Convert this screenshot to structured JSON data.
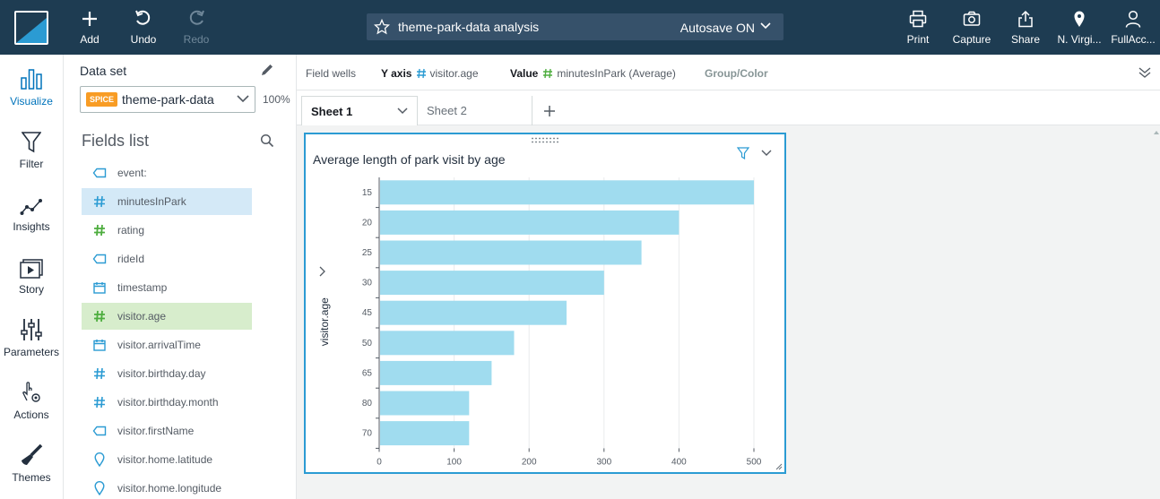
{
  "toolbar": {
    "add_label": "Add",
    "undo_label": "Undo",
    "redo_label": "Redo",
    "analysis_title": "theme-park-data analysis",
    "autosave_label": "Autosave ON",
    "print_label": "Print",
    "capture_label": "Capture",
    "share_label": "Share",
    "region_label": "N. Virgi...",
    "account_label": "FullAcc..."
  },
  "rail": {
    "visualize": "Visualize",
    "filter": "Filter",
    "insights": "Insights",
    "story": "Story",
    "parameters": "Parameters",
    "actions": "Actions",
    "themes": "Themes"
  },
  "dataset": {
    "label": "Data set",
    "badge": "SPICE",
    "name": "theme-park-data",
    "percent": "100%"
  },
  "fields_list": {
    "title": "Fields list",
    "items": [
      {
        "name": "event:",
        "type": "dimension"
      },
      {
        "name": "minutesInPark",
        "type": "measure",
        "state": "selected-blue"
      },
      {
        "name": "rating",
        "type": "measure-green"
      },
      {
        "name": "rideId",
        "type": "dimension"
      },
      {
        "name": "timestamp",
        "type": "date"
      },
      {
        "name": "visitor.age",
        "type": "measure-green",
        "state": "selected-green"
      },
      {
        "name": "visitor.arrivalTime",
        "type": "date"
      },
      {
        "name": "visitor.birthday.day",
        "type": "measure"
      },
      {
        "name": "visitor.birthday.month",
        "type": "measure"
      },
      {
        "name": "visitor.firstName",
        "type": "dimension"
      },
      {
        "name": "visitor.home.latitude",
        "type": "geo"
      },
      {
        "name": "visitor.home.longitude",
        "type": "geo"
      }
    ]
  },
  "field_wells": {
    "label": "Field wells",
    "y_axis_label": "Y axis",
    "y_axis_field": "visitor.age",
    "value_label": "Value",
    "value_field": "minutesInPark (Average)",
    "group_label": "Group/Color"
  },
  "sheets": {
    "tabs": [
      {
        "label": "Sheet 1",
        "active": true
      },
      {
        "label": "Sheet 2",
        "active": false
      }
    ]
  },
  "colors": {
    "topbar": "#1e3c52",
    "accent": "#0073bb",
    "bar": "#a0dcef",
    "measure_icon": "#2b9bd3",
    "measure_green_icon": "#4dad3e",
    "spice_badge": "#f89c24"
  },
  "chart_data": {
    "type": "bar",
    "orientation": "horizontal",
    "title": "Average length of park visit by age",
    "ylabel": "visitor.age",
    "xlabel": "",
    "categories": [
      "15",
      "20",
      "25",
      "30",
      "45",
      "50",
      "65",
      "80",
      "70"
    ],
    "values": [
      500,
      400,
      350,
      300,
      250,
      180,
      150,
      120,
      120
    ],
    "xlim": [
      0,
      500
    ],
    "xticks": [
      0,
      100,
      200,
      300,
      400,
      500
    ],
    "grid": true
  }
}
